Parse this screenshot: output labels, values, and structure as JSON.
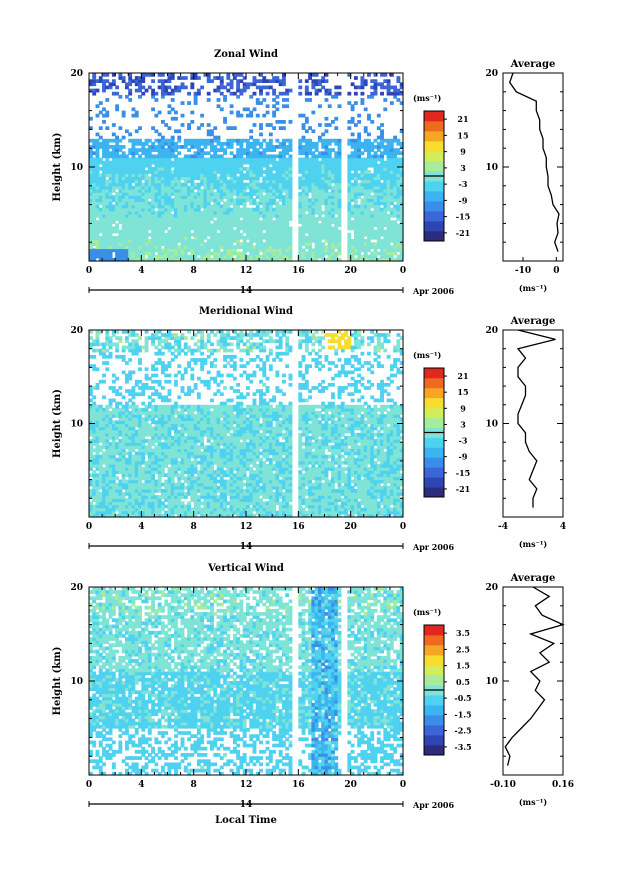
{
  "colors": {
    "ramp": [
      "#2b2c7c",
      "#2e45b4",
      "#3b66d8",
      "#3b8ee8",
      "#3bb4f0",
      "#4fd2f0",
      "#7fe4d6",
      "#a8ec9a",
      "#d2ec5a",
      "#f6dd2e",
      "#f6a624",
      "#ee6a20",
      "#e0281e"
    ],
    "white": "#ffffff",
    "axis": "#000000"
  },
  "chart_data": [
    {
      "type": "heatmap",
      "title": "Zonal Wind",
      "ylabel": "Height (km)",
      "ylim": [
        0,
        20
      ],
      "yticks": [
        "10",
        "20"
      ],
      "xlim": [
        0,
        24
      ],
      "xticks": [
        "0",
        "4",
        "8",
        "12",
        "16",
        "20",
        "0"
      ],
      "day_label": "14",
      "date_label": "Apr 2006",
      "colorbar": {
        "unit": "(ms⁻¹)",
        "ticks": [
          "21",
          "15",
          "9",
          "3",
          "-3",
          "-9",
          "-15",
          "-21"
        ],
        "range": [
          -24,
          24
        ]
      },
      "field": "zonal",
      "profile": {
        "title": "Average",
        "unit": "(ms⁻¹)",
        "xticks": [
          "-10",
          "0"
        ],
        "xlim": [
          -16,
          2
        ],
        "heights": [
          1,
          2,
          3,
          4,
          5,
          6,
          7,
          8,
          9,
          10,
          11,
          12,
          13,
          14,
          15,
          16,
          17,
          18,
          19,
          20
        ],
        "values": [
          0.5,
          -0.5,
          0.5,
          0.2,
          0.8,
          -1,
          -1.5,
          -2.5,
          -2.5,
          -3,
          -3,
          -4,
          -4,
          -5,
          -5,
          -6,
          -6,
          -12,
          -14,
          -13
        ]
      }
    },
    {
      "type": "heatmap",
      "title": "Meridional Wind",
      "ylabel": "Height (km)",
      "ylim": [
        0,
        20
      ],
      "yticks": [
        "10",
        "20"
      ],
      "xlim": [
        0,
        24
      ],
      "xticks": [
        "0",
        "4",
        "8",
        "12",
        "16",
        "20",
        "0"
      ],
      "day_label": "14",
      "date_label": "Apr 2006",
      "colorbar": {
        "unit": "(ms⁻¹)",
        "ticks": [
          "21",
          "15",
          "9",
          "3",
          "-3",
          "-9",
          "-15",
          "-21"
        ],
        "range": [
          -24,
          24
        ]
      },
      "field": "meridional",
      "profile": {
        "title": "Average",
        "unit": "(ms⁻¹)",
        "xticks": [
          "-4",
          "4"
        ],
        "xlim": [
          -4,
          4
        ],
        "heights": [
          1,
          2,
          3,
          4,
          5,
          6,
          7,
          8,
          9,
          10,
          11,
          12,
          13,
          14,
          15,
          16,
          17,
          18,
          19,
          20
        ],
        "values": [
          0,
          0,
          0.5,
          -0.5,
          0,
          0.5,
          -0.5,
          -1,
          -1,
          -2,
          -2,
          -1.5,
          -1,
          -1,
          -2,
          -2,
          -1,
          -2,
          3,
          -2
        ]
      }
    },
    {
      "type": "heatmap",
      "title": "Vertical Wind",
      "ylabel": "Height (km)",
      "xlabel": "Local Time",
      "ylim": [
        0,
        20
      ],
      "yticks": [
        "10",
        "20"
      ],
      "xlim": [
        0,
        24
      ],
      "xticks": [
        "0",
        "4",
        "8",
        "12",
        "16",
        "20",
        "0"
      ],
      "day_label": "14",
      "date_label": "Apr 2006",
      "colorbar": {
        "unit": "(ms⁻¹)",
        "ticks": [
          "3.5",
          "2.5",
          "1.5",
          "0.5",
          "-0.5",
          "-1.5",
          "-2.5",
          "-3.5"
        ],
        "range": [
          -4,
          4
        ]
      },
      "field": "vertical",
      "profile": {
        "title": "Average",
        "unit": "(ms⁻¹)",
        "xticks": [
          "-0.10",
          "0.16"
        ],
        "xlim": [
          -0.1,
          0.16
        ],
        "heights": [
          1,
          2,
          3,
          4,
          5,
          6,
          7,
          8,
          9,
          10,
          11,
          12,
          13,
          14,
          15,
          16,
          17,
          18,
          19,
          20
        ],
        "values": [
          -0.08,
          -0.07,
          -0.09,
          -0.06,
          -0.02,
          0.02,
          0.05,
          0.08,
          0.04,
          0.06,
          0.02,
          0.1,
          0.06,
          0.12,
          0.02,
          0.16,
          0.07,
          0.04,
          0.1,
          0.03
        ]
      }
    }
  ]
}
